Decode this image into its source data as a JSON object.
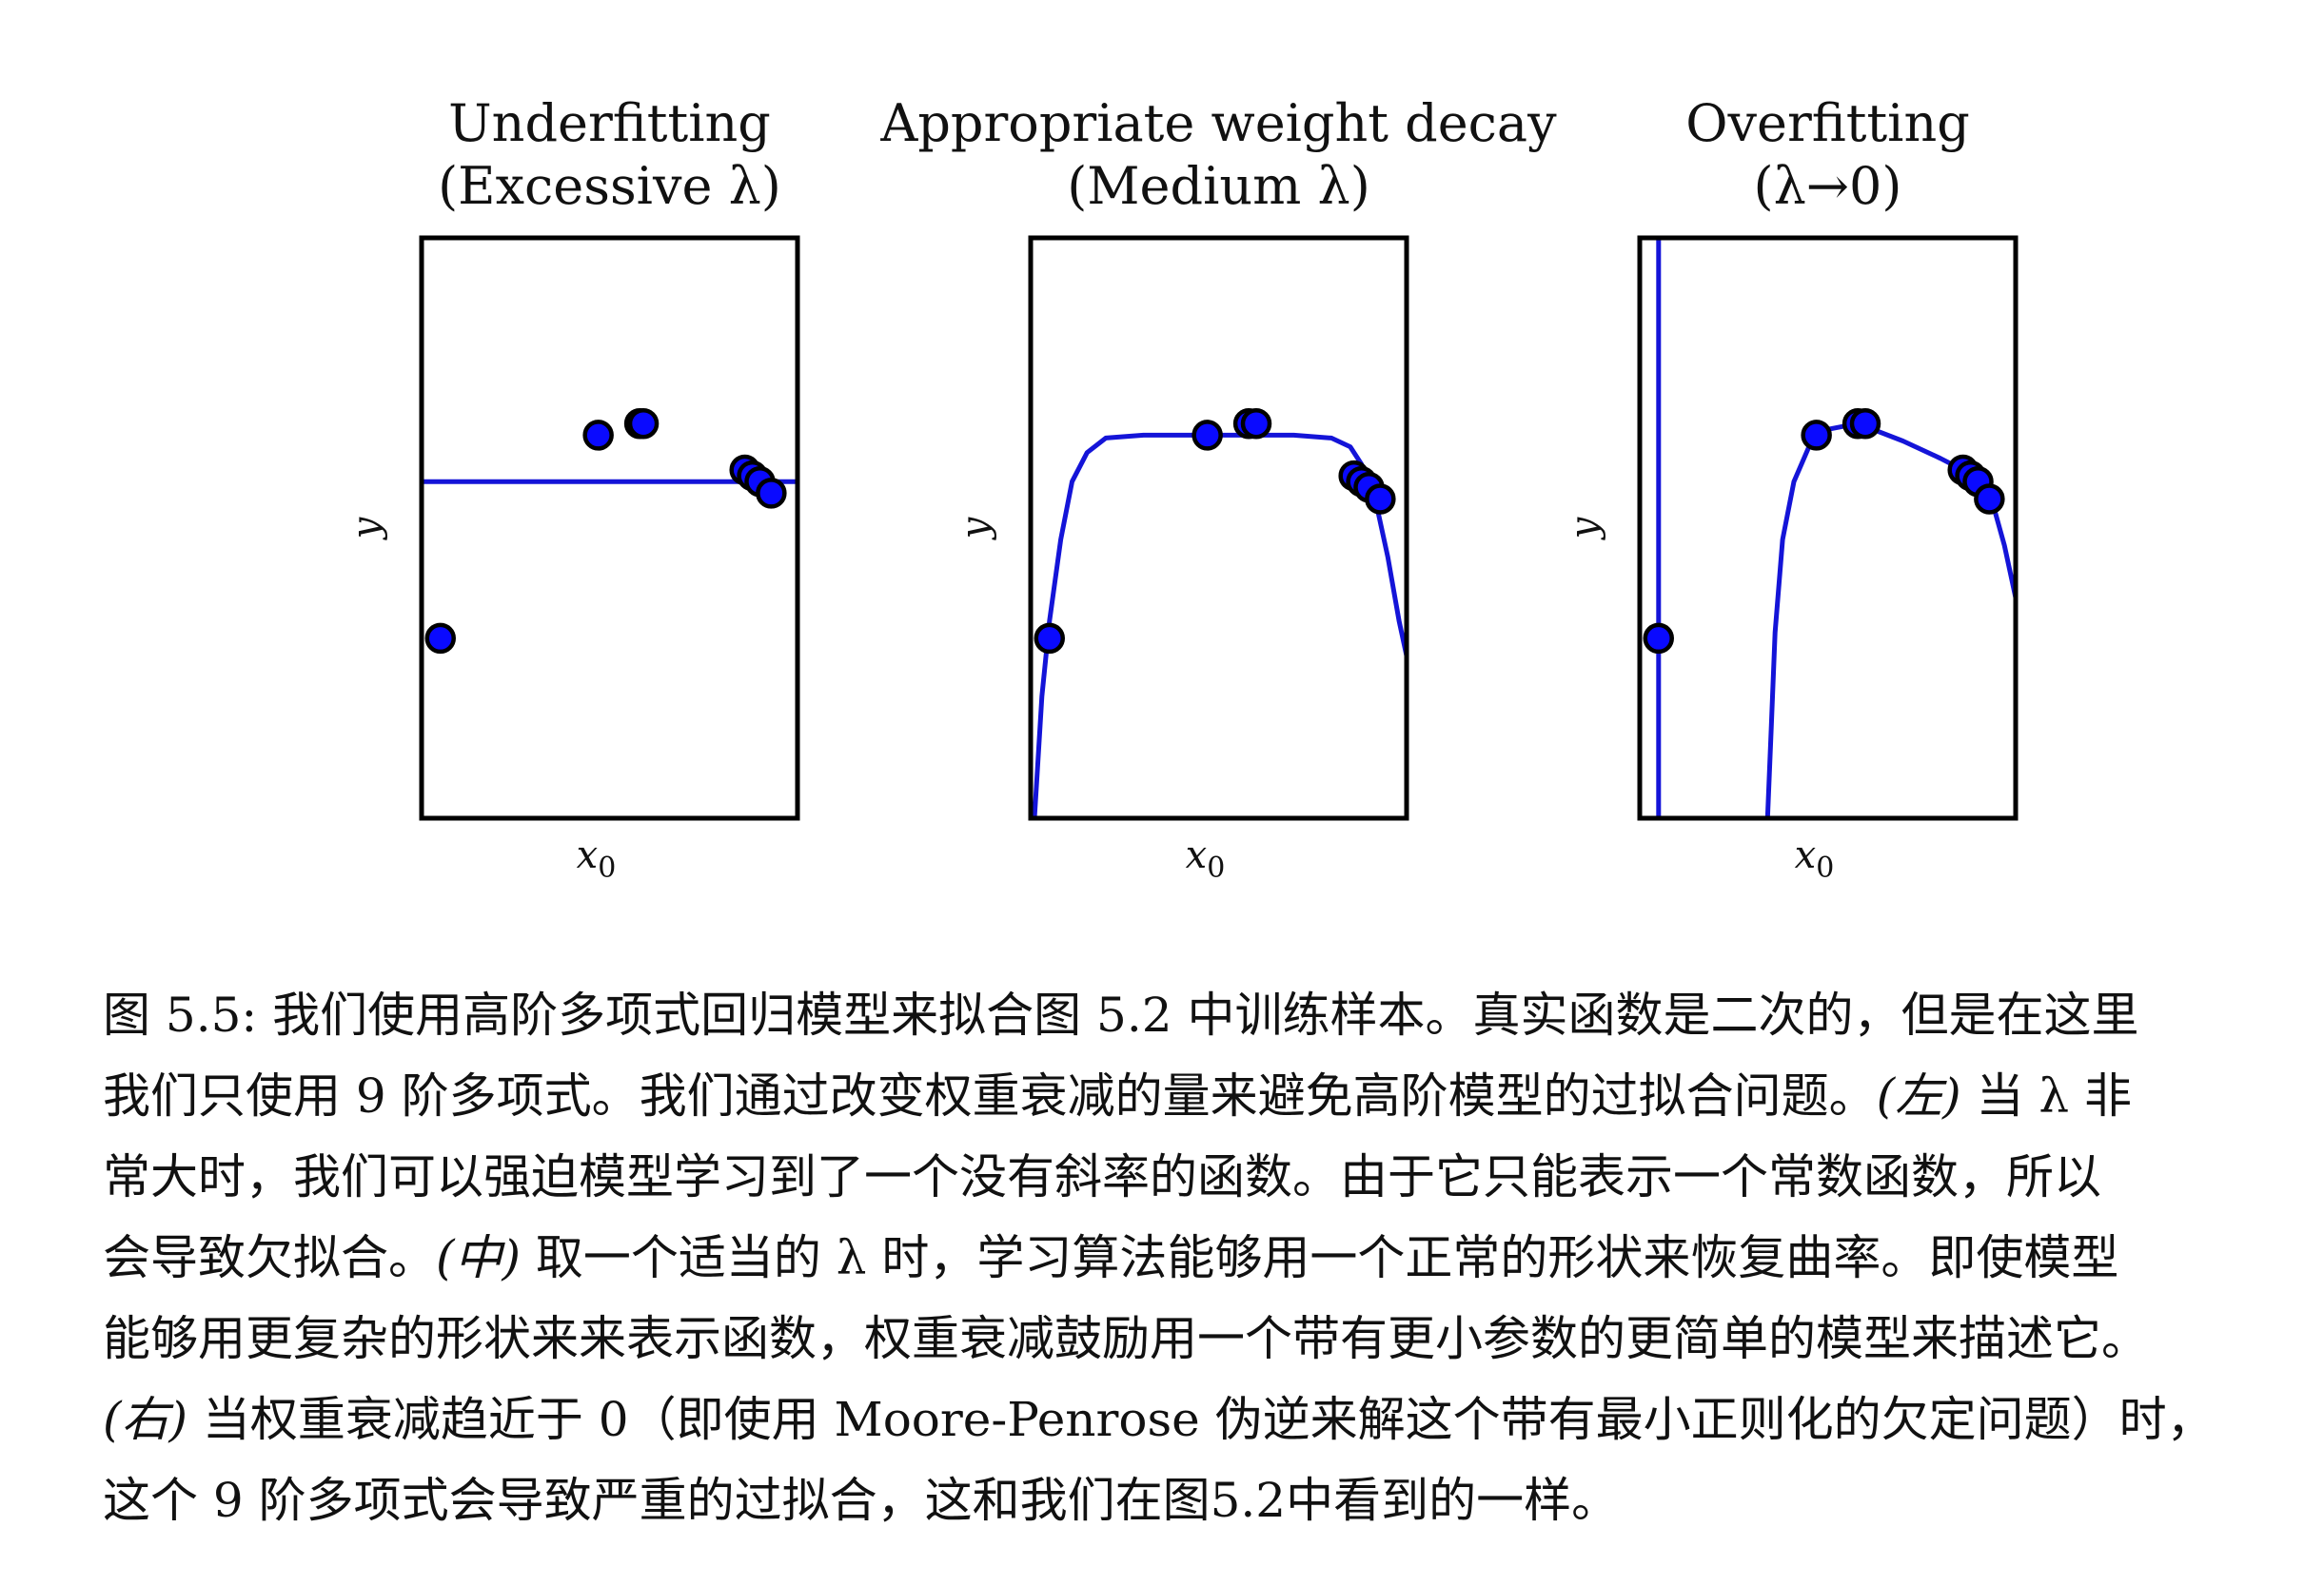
{
  "chart_data": [
    {
      "type": "line",
      "title": "Underfitting",
      "subtitle": "(Excessive λ)",
      "xlabel": "x0",
      "ylabel": "y",
      "xlim": [
        0,
        1
      ],
      "ylim": [
        0,
        1
      ],
      "points": [
        {
          "x": 0.05,
          "y": 0.31
        },
        {
          "x": 0.47,
          "y": 0.66
        },
        {
          "x": 0.58,
          "y": 0.68
        },
        {
          "x": 0.59,
          "y": 0.68
        },
        {
          "x": 0.86,
          "y": 0.6
        },
        {
          "x": 0.88,
          "y": 0.59
        },
        {
          "x": 0.9,
          "y": 0.58
        },
        {
          "x": 0.93,
          "y": 0.56
        }
      ],
      "curve": [
        {
          "x": 0.0,
          "y": 0.58
        },
        {
          "x": 1.0,
          "y": 0.58
        }
      ]
    },
    {
      "type": "line",
      "title": "Appropriate weight decay",
      "subtitle": "(Medium λ)",
      "xlabel": "x0",
      "ylabel": "y",
      "xlim": [
        0,
        1
      ],
      "ylim": [
        0,
        1
      ],
      "points": [
        {
          "x": 0.05,
          "y": 0.31
        },
        {
          "x": 0.47,
          "y": 0.66
        },
        {
          "x": 0.58,
          "y": 0.68
        },
        {
          "x": 0.6,
          "y": 0.68
        },
        {
          "x": 0.86,
          "y": 0.59
        },
        {
          "x": 0.88,
          "y": 0.58
        },
        {
          "x": 0.9,
          "y": 0.57
        },
        {
          "x": 0.93,
          "y": 0.55
        }
      ],
      "curve": [
        {
          "x": 0.01,
          "y": 0.0
        },
        {
          "x": 0.03,
          "y": 0.21
        },
        {
          "x": 0.05,
          "y": 0.34
        },
        {
          "x": 0.08,
          "y": 0.48
        },
        {
          "x": 0.11,
          "y": 0.58
        },
        {
          "x": 0.15,
          "y": 0.63
        },
        {
          "x": 0.2,
          "y": 0.655
        },
        {
          "x": 0.3,
          "y": 0.66
        },
        {
          "x": 0.5,
          "y": 0.66
        },
        {
          "x": 0.7,
          "y": 0.66
        },
        {
          "x": 0.8,
          "y": 0.655
        },
        {
          "x": 0.85,
          "y": 0.64
        },
        {
          "x": 0.88,
          "y": 0.61
        },
        {
          "x": 0.92,
          "y": 0.54
        },
        {
          "x": 0.95,
          "y": 0.45
        },
        {
          "x": 0.98,
          "y": 0.34
        },
        {
          "x": 1.0,
          "y": 0.28
        }
      ]
    },
    {
      "type": "line",
      "title": "Overfitting",
      "subtitle": "(λ→0)",
      "xlabel": "x0",
      "ylabel": "y",
      "xlim": [
        0,
        1
      ],
      "ylim": [
        0,
        1
      ],
      "points": [
        {
          "x": 0.05,
          "y": 0.31
        },
        {
          "x": 0.47,
          "y": 0.66
        },
        {
          "x": 0.58,
          "y": 0.68
        },
        {
          "x": 0.6,
          "y": 0.68
        },
        {
          "x": 0.86,
          "y": 0.6
        },
        {
          "x": 0.88,
          "y": 0.59
        },
        {
          "x": 0.9,
          "y": 0.58
        },
        {
          "x": 0.93,
          "y": 0.55
        }
      ],
      "curve": [
        {
          "x": 0.05,
          "y": 0.0
        },
        {
          "x": 0.05,
          "y": 1.0
        }
      ],
      "curve2": [
        {
          "x": 0.34,
          "y": 0.0
        },
        {
          "x": 0.35,
          "y": 0.16
        },
        {
          "x": 0.36,
          "y": 0.32
        },
        {
          "x": 0.38,
          "y": 0.48
        },
        {
          "x": 0.41,
          "y": 0.58
        },
        {
          "x": 0.45,
          "y": 0.64
        },
        {
          "x": 0.5,
          "y": 0.67
        },
        {
          "x": 0.58,
          "y": 0.68
        },
        {
          "x": 0.7,
          "y": 0.65
        },
        {
          "x": 0.8,
          "y": 0.62
        },
        {
          "x": 0.86,
          "y": 0.6
        },
        {
          "x": 0.9,
          "y": 0.58
        },
        {
          "x": 0.94,
          "y": 0.54
        },
        {
          "x": 0.97,
          "y": 0.47
        },
        {
          "x": 1.0,
          "y": 0.38
        }
      ]
    }
  ],
  "colors": {
    "curve": "#1414d8",
    "point_fill": "#0a0aff",
    "point_stroke": "#000000",
    "frame": "#000000"
  },
  "caption": {
    "lines": [
      [
        {
          "t": "图 5.5: 我们使用高阶多项式回归模型来拟合图 5.2 中训练样本。真实函数是二次的，但是在这里"
        }
      ],
      [
        {
          "t": "我们只使用 9 阶多项式。我们通过改变权重衰减的量来避免高阶模型的过拟合问题。"
        },
        {
          "t": "(左)",
          "i": true
        },
        {
          "t": " 当 λ 非"
        }
      ],
      [
        {
          "t": "常大时，我们可以强迫模型学习到了一个没有斜率的函数。由于它只能表示一个常数函数，所以"
        }
      ],
      [
        {
          "t": "会导致欠拟合。"
        },
        {
          "t": "(中)",
          "i": true
        },
        {
          "t": " 取一个适当的 λ 时，学习算法能够用一个正常的形状来恢复曲率。即使模型"
        }
      ],
      [
        {
          "t": "能够用更复杂的形状来来表示函数，权重衰减鼓励用一个带有更小参数的更简单的模型来描述它。"
        }
      ],
      [
        {
          "t": "(右)",
          "i": true
        },
        {
          "t": " 当权重衰减趋近于 0（即使用 Moore-Penrose 伪逆来解这个带有最小正则化的欠定问题）时，"
        }
      ],
      [
        {
          "t": "这个 9 阶多项式会导致严重的过拟合，这和我们在图5.2中看到的一样。"
        }
      ]
    ]
  }
}
